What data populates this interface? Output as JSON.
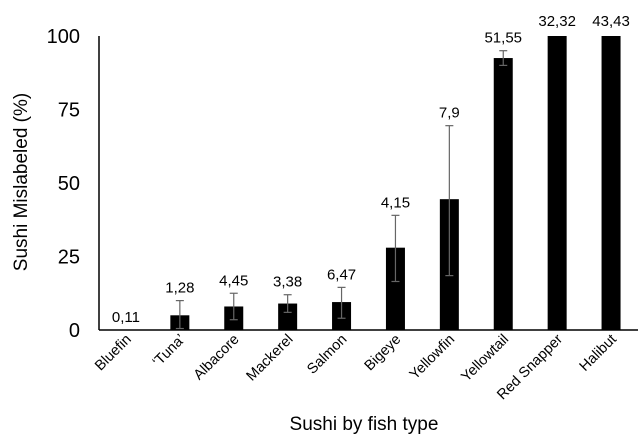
{
  "chart_data": {
    "type": "bar",
    "title": "",
    "xlabel": "Sushi by fish type",
    "ylabel": "Sushi Mislabeled (%)",
    "ylim": [
      0,
      100
    ],
    "yticks": [
      "0",
      "25",
      "50",
      "75",
      "100"
    ],
    "grid": false,
    "legend": "none",
    "bar_color": "#000000",
    "categories": [
      "Bluefin",
      "‘Tuna’",
      "Albacore",
      "Mackerel",
      "Salmon",
      "Bigeye",
      "Yellowfin",
      "Yellowtail",
      "Red Snapper",
      "Halibut"
    ],
    "values": [
      0,
      5,
      8,
      9,
      9.5,
      28,
      44.5,
      92.5,
      100,
      100
    ],
    "error_low": [
      0,
      0.5,
      3.5,
      6,
      4,
      16.5,
      18.5,
      90,
      100,
      100
    ],
    "error_high": [
      0,
      10,
      12.5,
      12,
      14.5,
      39,
      69.5,
      95,
      100,
      100
    ],
    "data_labels": [
      "0,11",
      "1,28",
      "4,45",
      "3,38",
      "6,47",
      "4,15",
      "7,9",
      "51,55",
      "32,32",
      "43,43"
    ]
  }
}
